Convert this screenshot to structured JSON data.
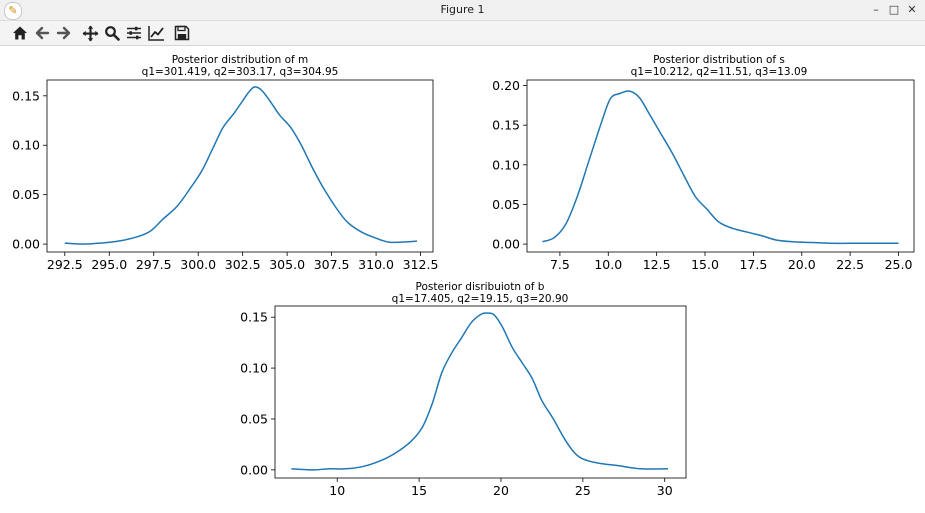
{
  "window": {
    "title": "Figure 1",
    "controls": {
      "minimize": "–",
      "maximize": "□",
      "close": "✕"
    }
  },
  "toolbar": {
    "items": [
      {
        "name": "home-icon"
      },
      {
        "name": "back-icon"
      },
      {
        "name": "forward-icon"
      },
      {
        "name": "pan-icon"
      },
      {
        "name": "zoom-icon"
      },
      {
        "name": "configure-subplots-icon"
      },
      {
        "name": "edit-axis-icon"
      },
      {
        "name": "save-icon"
      }
    ]
  },
  "colors": {
    "line": "#1f77b4",
    "axes": "#000000",
    "background": "#ffffff"
  },
  "chart_data": [
    {
      "type": "line",
      "title": "Posterior distribution of m",
      "subtitle": "q1=301.419, q2=303.17, q3=304.95",
      "xlabel": "",
      "ylabel": "",
      "xlim": [
        291.5,
        313.2
      ],
      "ylim": [
        -0.008,
        0.166
      ],
      "xticks": [
        292.5,
        295.0,
        297.5,
        300.0,
        302.5,
        305.0,
        307.5,
        310.0,
        312.5
      ],
      "xtick_labels": [
        "292.5",
        "295.0",
        "297.5",
        "300.0",
        "302.5",
        "305.0",
        "307.5",
        "310.0",
        "312.5"
      ],
      "yticks": [
        0.0,
        0.05,
        0.1,
        0.15
      ],
      "ytick_labels": [
        "0.00",
        "0.05",
        "0.10",
        "0.15"
      ],
      "series": [
        {
          "x": [
            292.5,
            293.5,
            294.5,
            295.5,
            296.5,
            297.3,
            298.0,
            298.8,
            299.5,
            300.2,
            300.8,
            301.4,
            302.0,
            302.5,
            302.9,
            303.2,
            303.6,
            304.1,
            304.6,
            305.2,
            305.8,
            306.4,
            307.0,
            307.7,
            308.4,
            309.2,
            310.0,
            310.7,
            311.4,
            312.3
          ],
          "y": [
            0.001,
            0.0,
            0.001,
            0.003,
            0.007,
            0.013,
            0.025,
            0.038,
            0.055,
            0.074,
            0.096,
            0.118,
            0.132,
            0.145,
            0.155,
            0.159,
            0.155,
            0.143,
            0.13,
            0.118,
            0.1,
            0.078,
            0.058,
            0.038,
            0.022,
            0.012,
            0.006,
            0.002,
            0.002,
            0.003
          ]
        }
      ]
    },
    {
      "type": "line",
      "title": "Posterior distribution of s",
      "subtitle": "q1=10.212, q2=11.51, q3=13.09",
      "xlabel": "",
      "ylabel": "",
      "xlim": [
        5.8,
        25.8
      ],
      "ylim": [
        -0.01,
        0.207
      ],
      "xticks": [
        7.5,
        10.0,
        12.5,
        15.0,
        17.5,
        20.0,
        22.5,
        25.0
      ],
      "xtick_labels": [
        "7.5",
        "10.0",
        "12.5",
        "15.0",
        "17.5",
        "20.0",
        "22.5",
        "25.0"
      ],
      "yticks": [
        0.0,
        0.05,
        0.1,
        0.15,
        0.2
      ],
      "ytick_labels": [
        "0.00",
        "0.05",
        "0.10",
        "0.15",
        "0.20"
      ],
      "series": [
        {
          "x": [
            6.6,
            7.2,
            7.8,
            8.4,
            9.0,
            9.6,
            10.1,
            10.6,
            11.1,
            11.6,
            12.1,
            12.7,
            13.3,
            13.9,
            14.5,
            15.1,
            15.7,
            16.4,
            17.2,
            18.0,
            18.7,
            19.5,
            20.5,
            21.5,
            22.5,
            23.5,
            25.0
          ],
          "y": [
            0.003,
            0.008,
            0.025,
            0.06,
            0.105,
            0.15,
            0.183,
            0.19,
            0.193,
            0.185,
            0.165,
            0.14,
            0.115,
            0.087,
            0.06,
            0.044,
            0.028,
            0.02,
            0.015,
            0.01,
            0.005,
            0.003,
            0.002,
            0.001,
            0.001,
            0.001,
            0.001
          ]
        }
      ]
    },
    {
      "type": "line",
      "title": "Posterior disribuiotn of b",
      "subtitle": "q1=17.405, q2=19.15, q3=20.90",
      "xlabel": "",
      "ylabel": "",
      "xlim": [
        6.2,
        31.3
      ],
      "ylim": [
        -0.008,
        0.161
      ],
      "xticks": [
        10,
        15,
        20,
        25,
        30
      ],
      "xtick_labels": [
        "10",
        "15",
        "20",
        "25",
        "30"
      ],
      "yticks": [
        0.0,
        0.05,
        0.1,
        0.15
      ],
      "ytick_labels": [
        "0.00",
        "0.05",
        "0.10",
        "0.15"
      ],
      "series": [
        {
          "x": [
            7.2,
            8.5,
            9.5,
            10.5,
            11.5,
            12.5,
            13.5,
            14.5,
            15.2,
            15.8,
            16.4,
            17.0,
            17.6,
            18.2,
            18.8,
            19.2,
            19.6,
            20.1,
            20.7,
            21.3,
            21.9,
            22.5,
            23.2,
            23.9,
            24.6,
            25.3,
            26.2,
            27.2,
            28.5,
            30.2
          ],
          "y": [
            0.001,
            0.0,
            0.001,
            0.001,
            0.003,
            0.008,
            0.016,
            0.028,
            0.042,
            0.065,
            0.096,
            0.115,
            0.13,
            0.145,
            0.153,
            0.154,
            0.152,
            0.14,
            0.12,
            0.105,
            0.09,
            0.068,
            0.05,
            0.03,
            0.015,
            0.009,
            0.006,
            0.004,
            0.001,
            0.001
          ]
        }
      ]
    }
  ]
}
